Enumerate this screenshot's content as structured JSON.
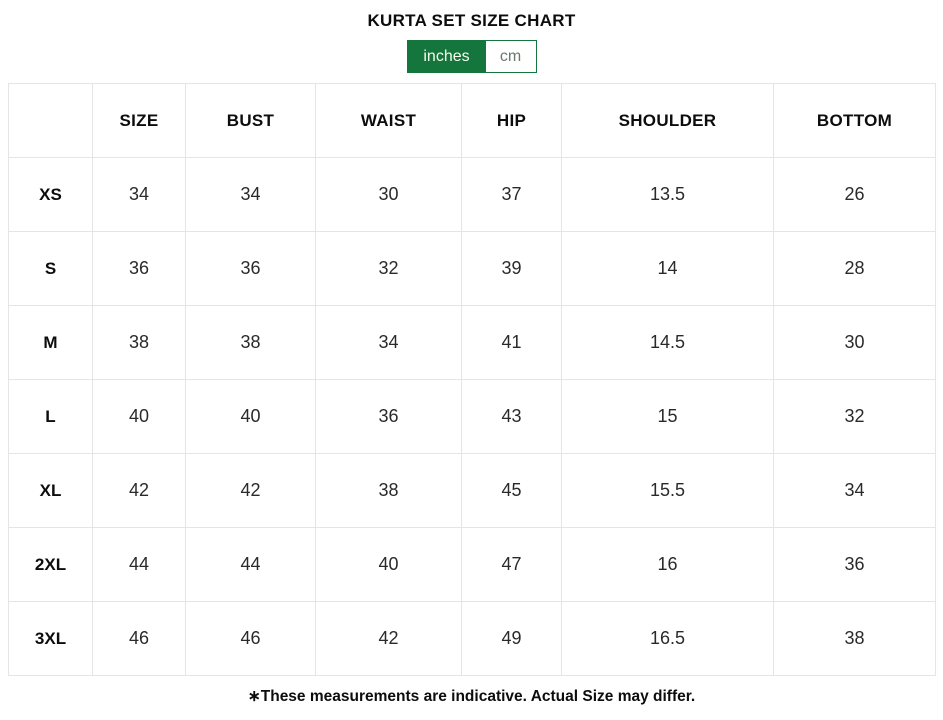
{
  "page": {
    "title": "KURTA SET SIZE CHART",
    "footnote": "∗These measurements are indicative. Actual Size may differ."
  },
  "unit_toggle": {
    "selected": "inches",
    "options": [
      {
        "label": "inches",
        "active": true
      },
      {
        "label": "cm",
        "active": false
      }
    ]
  },
  "colors": {
    "accent_green": "#14763c",
    "toggle_active_text": "#f6fbee",
    "toggle_inactive_text": "#69796e",
    "table_border": "#e5e5e5",
    "heading_text": "#0d0d0d",
    "cell_text": "#2a2a2a"
  },
  "chart_data": {
    "type": "table",
    "title": "KURTA SET SIZE CHART",
    "unit": "inches",
    "columns": [
      "",
      "SIZE",
      "BUST",
      "WAIST",
      "HIP",
      "SHOULDER",
      "BOTTOM"
    ],
    "rows": [
      {
        "label": "XS",
        "values": [
          "34",
          "34",
          "30",
          "37",
          "13.5",
          "26"
        ]
      },
      {
        "label": "S",
        "values": [
          "36",
          "36",
          "32",
          "39",
          "14",
          "28"
        ]
      },
      {
        "label": "M",
        "values": [
          "38",
          "38",
          "34",
          "41",
          "14.5",
          "30"
        ]
      },
      {
        "label": "L",
        "values": [
          "40",
          "40",
          "36",
          "43",
          "15",
          "32"
        ]
      },
      {
        "label": "XL",
        "values": [
          "42",
          "42",
          "38",
          "45",
          "15.5",
          "34"
        ]
      },
      {
        "label": "2XL",
        "values": [
          "44",
          "44",
          "40",
          "47",
          "16",
          "36"
        ]
      },
      {
        "label": "3XL",
        "values": [
          "46",
          "46",
          "42",
          "49",
          "16.5",
          "38"
        ]
      }
    ]
  }
}
